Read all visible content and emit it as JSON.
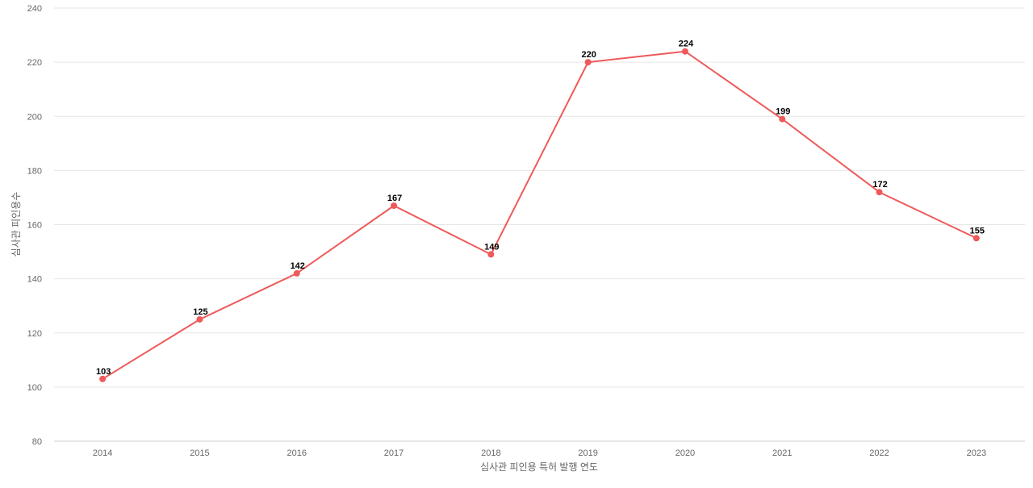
{
  "chart_data": {
    "type": "line",
    "title": "",
    "xlabel": "심사관 피인용 특허 발행 연도",
    "ylabel": "심사관 피인용수",
    "x": [
      "2014",
      "2015",
      "2016",
      "2017",
      "2018",
      "2019",
      "2020",
      "2021",
      "2022",
      "2023"
    ],
    "series": [
      {
        "values": [
          103,
          125,
          142,
          167,
          149,
          220,
          224,
          199,
          172,
          155
        ],
        "color": "#ee5a5a"
      }
    ],
    "ylim": [
      80,
      240
    ],
    "yticks": [
      80,
      100,
      120,
      140,
      160,
      180,
      200,
      220,
      240
    ],
    "grid": true,
    "data_labels": true,
    "legend": "none"
  }
}
